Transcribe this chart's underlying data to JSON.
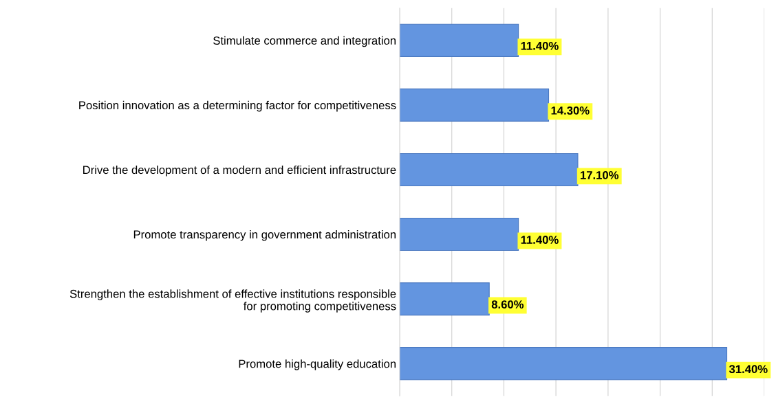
{
  "chart_data": {
    "type": "bar",
    "orientation": "horizontal",
    "categories": [
      "Stimulate commerce and integration",
      "Position innovation as a determining factor for competitiveness",
      "Drive the development of a modern and efficient infrastructure",
      "Promote transparency in government administration",
      "Strengthen the establishment of effective institutions responsible\nfor promoting competitiveness",
      "Promote high-quality education"
    ],
    "values": [
      11.4,
      14.3,
      17.1,
      11.4,
      8.6,
      31.4
    ],
    "value_labels": [
      "11.40%",
      "14.30%",
      "17.10%",
      "11.40%",
      "8.60%",
      "31.40%"
    ],
    "color": "#6395e0",
    "xlim": [
      0,
      35
    ],
    "xticks": [
      {
        "value": 0,
        "label": null
      },
      {
        "value": 5,
        "label": null
      },
      {
        "value": 10,
        "label": null
      },
      {
        "value": 15,
        "label": null
      },
      {
        "value": 20,
        "label": null
      },
      {
        "value": 25,
        "label": null
      },
      {
        "value": 30,
        "label": null
      },
      {
        "value": 35,
        "label": null
      }
    ],
    "grid": "x",
    "tick_labels": "y"
  }
}
